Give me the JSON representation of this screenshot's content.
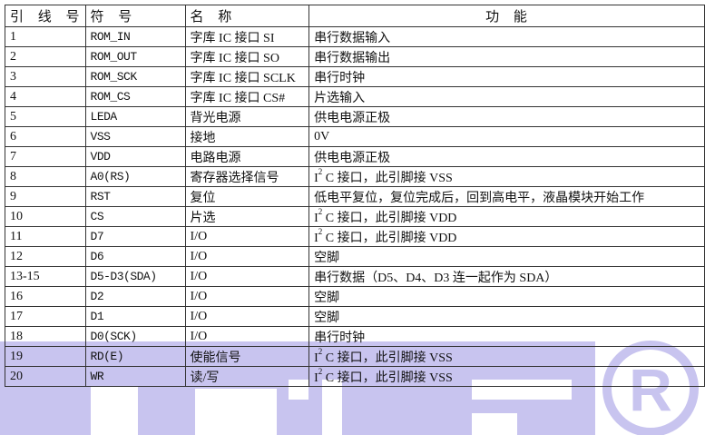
{
  "headers": [
    "引 线 号",
    "符 号",
    "名 称",
    "功 能"
  ],
  "rows": [
    {
      "pin": "1",
      "symbol": "ROM_IN",
      "name": "字库 IC 接口 SI",
      "function": "串行数据输入"
    },
    {
      "pin": "2",
      "symbol": "ROM_OUT",
      "name": "字库 IC 接口 SO",
      "function": "串行数据输出"
    },
    {
      "pin": "3",
      "symbol": "ROM_SCK",
      "name": "字库 IC 接口 SCLK",
      "function": "串行时钟"
    },
    {
      "pin": "4",
      "symbol": "ROM_CS",
      "name": "字库 IC 接口 CS#",
      "function": "片选输入"
    },
    {
      "pin": "5",
      "symbol": "LEDA",
      "name": "背光电源",
      "function": "供电电源正极"
    },
    {
      "pin": "6",
      "symbol": "VSS",
      "name": "接地",
      "function": "0V"
    },
    {
      "pin": "7",
      "symbol": "VDD",
      "name": "电路电源",
      "function": "供电电源正极"
    },
    {
      "pin": "8",
      "symbol": "A0(RS)",
      "name": "寄存器选择信号",
      "function_i2c": "C 接口，此引脚接 VSS"
    },
    {
      "pin": "9",
      "symbol": "RST",
      "name": "复位",
      "function": "低电平复位，复位完成后，回到高电平，液晶模块开始工作"
    },
    {
      "pin": "10",
      "symbol": "CS",
      "name": "片选",
      "function_i2c": "C 接口，此引脚接 VDD"
    },
    {
      "pin": "11",
      "symbol": "D7",
      "name": "I/O",
      "function_i2c": "C 接口，此引脚接 VDD"
    },
    {
      "pin": "12",
      "symbol": "D6",
      "name": "I/O",
      "function": "空脚"
    },
    {
      "pin": "13-15",
      "symbol": "D5-D3(SDA)",
      "name": "I/O",
      "function": "串行数据（D5、D4、D3 连一起作为 SDA）"
    },
    {
      "pin": "16",
      "symbol": "D2",
      "name": "I/O",
      "function": "空脚"
    },
    {
      "pin": "17",
      "symbol": "D1",
      "name": "I/O",
      "function": "空脚"
    },
    {
      "pin": "18",
      "symbol": "D0(SCK)",
      "name": "I/O",
      "function": "串行时钟"
    },
    {
      "pin": "19",
      "symbol": "RD(E)",
      "name": "使能信号",
      "function_i2c": "C 接口，此引脚接 VSS"
    },
    {
      "pin": "20",
      "symbol": "WR",
      "name": "读/写",
      "function_i2c": "C 接口，此引脚接 VSS"
    }
  ],
  "i2c_prefix": "I",
  "i2c_sup": "2",
  "watermark": {
    "color": "#c8c4ef",
    "mark": "registered-trademark"
  }
}
